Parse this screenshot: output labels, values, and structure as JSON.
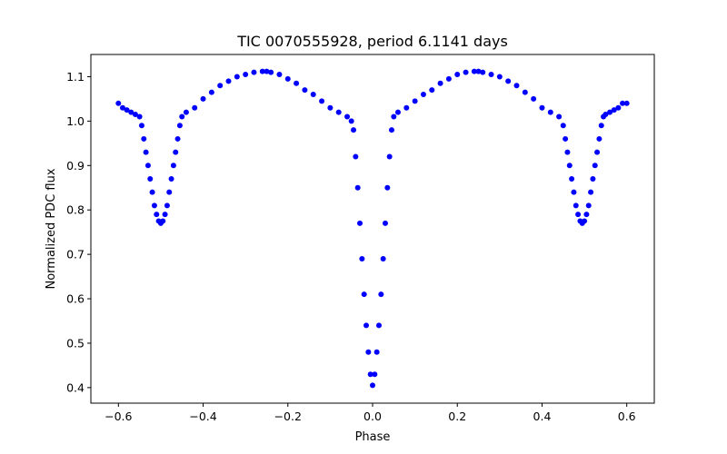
{
  "chart_data": {
    "type": "scatter",
    "title": "TIC 0070555928, period 6.1141 days",
    "xlabel": "Phase",
    "ylabel": "Normalized PDC flux",
    "xlim": [
      -0.665,
      0.665
    ],
    "ylim": [
      0.365,
      1.15
    ],
    "xticks": [
      -0.6,
      -0.4,
      -0.2,
      0.0,
      0.2,
      0.4,
      0.6
    ],
    "xtick_labels": [
      "−0.6",
      "−0.4",
      "−0.2",
      "0.0",
      "0.2",
      "0.4",
      "0.6"
    ],
    "yticks": [
      0.4,
      0.5,
      0.6,
      0.7,
      0.8,
      0.9,
      1.0,
      1.1
    ],
    "ytick_labels": [
      "0.4",
      "0.5",
      "0.6",
      "0.7",
      "0.8",
      "0.9",
      "1.0",
      "1.1"
    ],
    "grid": false,
    "marker_color": "#0000ff",
    "series": [
      {
        "x": [
          -0.6,
          -0.59,
          -0.58,
          -0.57,
          -0.56,
          -0.55,
          -0.545,
          -0.54,
          -0.535,
          -0.53,
          -0.525,
          -0.52,
          -0.515,
          -0.51,
          -0.505,
          -0.5,
          -0.495,
          -0.49,
          -0.485,
          -0.48,
          -0.475,
          -0.47,
          -0.465,
          -0.46,
          -0.455,
          -0.45,
          -0.44,
          -0.42,
          -0.4,
          -0.38,
          -0.36,
          -0.34,
          -0.32,
          -0.3,
          -0.28,
          -0.26,
          -0.25,
          -0.24,
          -0.22,
          -0.2,
          -0.18,
          -0.16,
          -0.14,
          -0.12,
          -0.1,
          -0.08,
          -0.06,
          -0.05,
          -0.045,
          -0.04,
          -0.035,
          -0.03,
          -0.025,
          -0.02,
          -0.015,
          -0.01,
          -0.005,
          0.0,
          0.005,
          0.01,
          0.015,
          0.02,
          0.025,
          0.03,
          0.035,
          0.04,
          0.045,
          0.05,
          0.06,
          0.08,
          0.1,
          0.12,
          0.14,
          0.16,
          0.18,
          0.2,
          0.22,
          0.24,
          0.25,
          0.26,
          0.28,
          0.3,
          0.32,
          0.34,
          0.36,
          0.38,
          0.4,
          0.42,
          0.44,
          0.45,
          0.455,
          0.46,
          0.465,
          0.47,
          0.475,
          0.48,
          0.485,
          0.49,
          0.495,
          0.5,
          0.505,
          0.51,
          0.515,
          0.52,
          0.525,
          0.53,
          0.535,
          0.54,
          0.545,
          0.55,
          0.56,
          0.57,
          0.58,
          0.59,
          0.6
        ],
        "y": [
          1.04,
          1.03,
          1.025,
          1.02,
          1.015,
          1.01,
          0.99,
          0.96,
          0.93,
          0.9,
          0.87,
          0.84,
          0.81,
          0.79,
          0.775,
          0.77,
          0.775,
          0.79,
          0.81,
          0.84,
          0.87,
          0.9,
          0.93,
          0.96,
          0.99,
          1.01,
          1.02,
          1.03,
          1.05,
          1.065,
          1.08,
          1.09,
          1.1,
          1.105,
          1.11,
          1.112,
          1.112,
          1.11,
          1.105,
          1.095,
          1.085,
          1.07,
          1.06,
          1.045,
          1.03,
          1.02,
          1.01,
          1.0,
          0.98,
          0.92,
          0.85,
          0.77,
          0.69,
          0.61,
          0.54,
          0.48,
          0.43,
          0.405,
          0.43,
          0.48,
          0.54,
          0.61,
          0.69,
          0.77,
          0.85,
          0.92,
          0.98,
          1.01,
          1.02,
          1.03,
          1.045,
          1.06,
          1.07,
          1.085,
          1.095,
          1.105,
          1.11,
          1.112,
          1.112,
          1.11,
          1.105,
          1.1,
          1.09,
          1.08,
          1.065,
          1.05,
          1.03,
          1.02,
          1.01,
          0.99,
          0.96,
          0.93,
          0.9,
          0.87,
          0.84,
          0.81,
          0.79,
          0.775,
          0.77,
          0.775,
          0.79,
          0.81,
          0.84,
          0.87,
          0.9,
          0.93,
          0.96,
          0.99,
          1.01,
          1.015,
          1.02,
          1.025,
          1.03,
          1.04,
          1.04
        ]
      }
    ]
  }
}
